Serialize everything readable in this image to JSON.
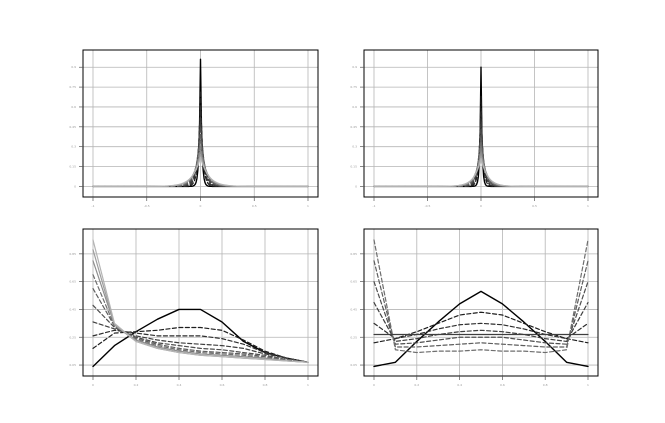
{
  "figure": {
    "background": "#ffffff",
    "grid_color": "#b5b5b5",
    "curve_color_dark": "#000000",
    "curve_color_light": "#b4b4b4"
  },
  "chart_data": [
    {
      "type": "line",
      "panel": "top-left",
      "title": "",
      "xlabel": "",
      "ylabel": "",
      "grid": true,
      "legend": "none",
      "xlim": [
        -1,
        1
      ],
      "ylim": [
        -0.05,
        1.0
      ],
      "x_ticks": [
        -1,
        -0.5,
        0,
        0.5,
        1
      ],
      "y_ticks": [
        0,
        0.15,
        0.3,
        0.45,
        0.6,
        0.75,
        0.9
      ],
      "profile": "peak",
      "curves": [
        {
          "style": "solid",
          "color": "#000000",
          "peak": 0.96,
          "width": 0.012
        },
        {
          "style": "dashed",
          "color": "#1e1e1e",
          "peak": 0.72,
          "width": 0.02
        },
        {
          "style": "dashed",
          "color": "#2e2e2e",
          "peak": 0.6,
          "width": 0.026
        },
        {
          "style": "dashed",
          "color": "#3e3e3e",
          "peak": 0.52,
          "width": 0.032
        },
        {
          "style": "dashed",
          "color": "#4e4e4e",
          "peak": 0.45,
          "width": 0.038
        },
        {
          "style": "dashed",
          "color": "#5e5e5e",
          "peak": 0.39,
          "width": 0.044
        },
        {
          "style": "dashed",
          "color": "#6e6e6e",
          "peak": 0.34,
          "width": 0.05
        },
        {
          "style": "dashed",
          "color": "#7e7e7e",
          "peak": 0.3,
          "width": 0.056
        },
        {
          "style": "solid",
          "color": "#8e8e8e",
          "peak": 0.27,
          "width": 0.062
        },
        {
          "style": "solid",
          "color": "#9e9e9e",
          "peak": 0.24,
          "width": 0.068
        },
        {
          "style": "solid",
          "color": "#b4b4b4",
          "peak": 0.22,
          "width": 0.074
        }
      ]
    },
    {
      "type": "line",
      "panel": "top-right",
      "title": "",
      "xlabel": "",
      "ylabel": "",
      "grid": true,
      "legend": "none",
      "xlim": [
        -1,
        1
      ],
      "ylim": [
        -0.05,
        1.0
      ],
      "x_ticks": [
        -1,
        -0.5,
        0,
        0.5,
        1
      ],
      "y_ticks": [
        0,
        0.15,
        0.3,
        0.45,
        0.6,
        0.75,
        0.9
      ],
      "profile": "peak",
      "curves": [
        {
          "style": "solid",
          "color": "#000000",
          "peak": 0.9,
          "width": 0.01
        },
        {
          "style": "dashed",
          "color": "#1e1e1e",
          "peak": 0.68,
          "width": 0.017
        },
        {
          "style": "dashed",
          "color": "#2e2e2e",
          "peak": 0.57,
          "width": 0.022
        },
        {
          "style": "dashed",
          "color": "#3e3e3e",
          "peak": 0.49,
          "width": 0.027
        },
        {
          "style": "dashed",
          "color": "#4e4e4e",
          "peak": 0.43,
          "width": 0.032
        },
        {
          "style": "dashed",
          "color": "#5e5e5e",
          "peak": 0.37,
          "width": 0.037
        },
        {
          "style": "dashed",
          "color": "#6e6e6e",
          "peak": 0.33,
          "width": 0.042
        },
        {
          "style": "dashed",
          "color": "#7e7e7e",
          "peak": 0.29,
          "width": 0.047
        },
        {
          "style": "solid",
          "color": "#8e8e8e",
          "peak": 0.26,
          "width": 0.052
        },
        {
          "style": "solid",
          "color": "#9e9e9e",
          "peak": 0.23,
          "width": 0.057
        },
        {
          "style": "solid",
          "color": "#b4b4b4",
          "peak": 0.21,
          "width": 0.062
        }
      ]
    },
    {
      "type": "line",
      "panel": "bottom-left",
      "title": "",
      "xlabel": "",
      "ylabel": "",
      "grid": true,
      "legend": "none",
      "xlim": [
        0,
        1
      ],
      "ylim": [
        0,
        1.0
      ],
      "x_ticks": [
        0,
        0.2,
        0.4,
        0.6,
        0.8,
        1.0
      ],
      "y_ticks": [
        0.05,
        0.25,
        0.45,
        0.65,
        0.85
      ],
      "x": [
        0,
        0.1,
        0.2,
        0.3,
        0.4,
        0.5,
        0.6,
        0.7,
        0.8,
        0.9,
        1.0
      ],
      "curves": [
        {
          "style": "solid",
          "color": "#000000",
          "y": [
            0.04,
            0.19,
            0.29,
            0.38,
            0.45,
            0.45,
            0.36,
            0.22,
            0.14,
            0.1,
            0.07
          ]
        },
        {
          "style": "dashed",
          "color": "#1e1e1e",
          "y": [
            0.17,
            0.28,
            0.29,
            0.3,
            0.32,
            0.32,
            0.3,
            0.23,
            0.15,
            0.1,
            0.07
          ]
        },
        {
          "style": "dashed",
          "color": "#2e2e2e",
          "y": [
            0.26,
            0.3,
            0.28,
            0.26,
            0.26,
            0.26,
            0.24,
            0.2,
            0.14,
            0.1,
            0.07
          ]
        },
        {
          "style": "dashed",
          "color": "#3e3e3e",
          "y": [
            0.36,
            0.31,
            0.26,
            0.23,
            0.21,
            0.2,
            0.19,
            0.17,
            0.13,
            0.1,
            0.07
          ]
        },
        {
          "style": "dashed",
          "color": "#4e4e4e",
          "y": [
            0.48,
            0.32,
            0.25,
            0.21,
            0.19,
            0.17,
            0.16,
            0.14,
            0.12,
            0.09,
            0.07
          ]
        },
        {
          "style": "dashed",
          "color": "#5e5e5e",
          "y": [
            0.6,
            0.33,
            0.24,
            0.2,
            0.17,
            0.15,
            0.14,
            0.13,
            0.11,
            0.09,
            0.07
          ]
        },
        {
          "style": "dashed",
          "color": "#6e6e6e",
          "y": [
            0.7,
            0.33,
            0.23,
            0.19,
            0.16,
            0.14,
            0.13,
            0.12,
            0.1,
            0.09,
            0.07
          ]
        },
        {
          "style": "solid",
          "color": "#8e8e8e",
          "y": [
            0.8,
            0.34,
            0.23,
            0.18,
            0.15,
            0.13,
            0.12,
            0.11,
            0.1,
            0.08,
            0.07
          ]
        },
        {
          "style": "solid",
          "color": "#9e9e9e",
          "y": [
            0.88,
            0.34,
            0.22,
            0.17,
            0.14,
            0.12,
            0.11,
            0.1,
            0.09,
            0.08,
            0.07
          ]
        },
        {
          "style": "solid",
          "color": "#b4b4b4",
          "y": [
            0.95,
            0.35,
            0.22,
            0.17,
            0.14,
            0.12,
            0.11,
            0.1,
            0.09,
            0.08,
            0.07
          ]
        }
      ]
    },
    {
      "type": "line",
      "panel": "bottom-right",
      "title": "",
      "xlabel": "",
      "ylabel": "",
      "grid": true,
      "legend": "none",
      "xlim": [
        0,
        1
      ],
      "ylim": [
        0,
        1.0
      ],
      "x_ticks": [
        0,
        0.2,
        0.4,
        0.6,
        0.8,
        1.0
      ],
      "y_ticks": [
        0.05,
        0.25,
        0.45,
        0.65,
        0.85
      ],
      "x": [
        0,
        0.1,
        0.2,
        0.3,
        0.4,
        0.5,
        0.6,
        0.7,
        0.8,
        0.9,
        1.0
      ],
      "curves": [
        {
          "style": "solid",
          "color": "#000000",
          "y": [
            0.04,
            0.07,
            0.22,
            0.36,
            0.49,
            0.58,
            0.49,
            0.36,
            0.22,
            0.07,
            0.04
          ]
        },
        {
          "style": "dashed",
          "color": "#1e1e1e",
          "y": [
            0.21,
            0.24,
            0.29,
            0.35,
            0.41,
            0.43,
            0.41,
            0.35,
            0.29,
            0.24,
            0.21
          ]
        },
        {
          "style": "dashed",
          "color": "#2e2e2e",
          "y": [
            0.35,
            0.24,
            0.27,
            0.31,
            0.34,
            0.35,
            0.34,
            0.31,
            0.27,
            0.24,
            0.35
          ]
        },
        {
          "style": "dashed",
          "color": "#3e3e3e",
          "y": [
            0.5,
            0.22,
            0.24,
            0.27,
            0.29,
            0.3,
            0.29,
            0.27,
            0.24,
            0.22,
            0.5
          ]
        },
        {
          "style": "dashed",
          "color": "#4e4e4e",
          "y": [
            0.65,
            0.2,
            0.21,
            0.23,
            0.25,
            0.25,
            0.25,
            0.23,
            0.21,
            0.2,
            0.65
          ]
        },
        {
          "style": "dashed",
          "color": "#5e5e5e",
          "y": [
            0.8,
            0.18,
            0.18,
            0.19,
            0.2,
            0.21,
            0.2,
            0.19,
            0.18,
            0.18,
            0.8
          ]
        },
        {
          "style": "dashed",
          "color": "#6e6e6e",
          "y": [
            0.95,
            0.16,
            0.14,
            0.15,
            0.15,
            0.16,
            0.15,
            0.15,
            0.14,
            0.16,
            0.95
          ]
        },
        {
          "style": "solid",
          "color": "#3e3e3e",
          "y": [
            0.27,
            0.27,
            0.27,
            0.27,
            0.27,
            0.27,
            0.27,
            0.27,
            0.27,
            0.27,
            0.27
          ]
        }
      ]
    }
  ]
}
